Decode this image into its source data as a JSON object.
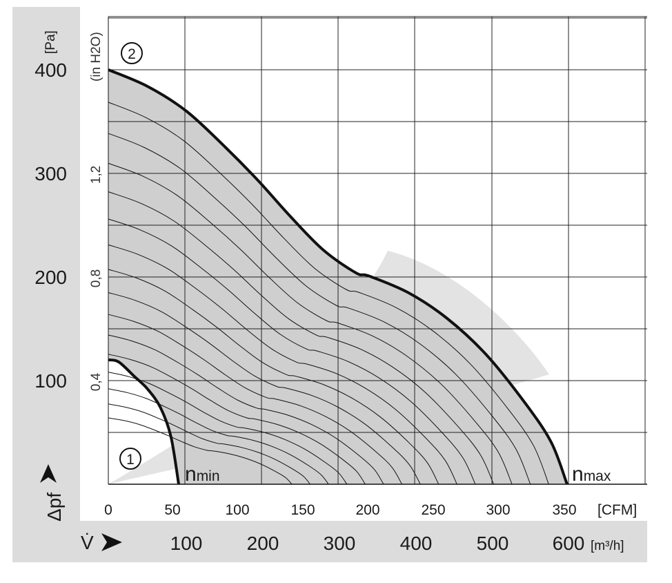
{
  "chart_data": {
    "type": "line",
    "title": "",
    "xlabel": "V̇",
    "ylabel": "Δpf",
    "x_unit_primary": "[m³/h]",
    "x_unit_secondary": "[CFM]",
    "y_unit_primary": "[Pa]",
    "y_unit_secondary": "(in H2O)",
    "x_ticks_m3h": [
      "100",
      "200",
      "300",
      "400",
      "500",
      "600"
    ],
    "x_ticks_cfm": [
      "0",
      "50",
      "100",
      "150",
      "200",
      "250",
      "300",
      "350"
    ],
    "y_ticks_pa": [
      "100",
      "200",
      "300",
      "400"
    ],
    "y_ticks_inh2o": [
      "0,4",
      "0,8",
      "1,2"
    ],
    "xlim_cfm": [
      0,
      380
    ],
    "ylim_pa": [
      0,
      400
    ],
    "grid": true,
    "series": [
      {
        "name": "nmax",
        "marker": "2",
        "x_cfm": [
          0,
          30,
          60,
          90,
          115,
          140,
          165,
          190,
          200,
          230,
          260,
          290,
          320,
          340,
          352
        ],
        "y_pa": [
          400,
          384,
          360,
          325,
          293,
          258,
          226,
          204,
          201,
          185,
          160,
          125,
          78,
          40,
          0
        ]
      },
      {
        "name": "nmin",
        "marker": "1",
        "x_cfm": [
          0,
          8,
          20,
          30,
          40,
          48,
          54
        ],
        "y_pa": [
          120,
          118,
          104,
          92,
          74,
          46,
          0
        ]
      }
    ],
    "curve_labels": [
      "n",
      "min",
      "n",
      "max"
    ],
    "markers": [
      "1",
      "2"
    ],
    "colors": {
      "operating_area": "#cfcfcf",
      "recommended_band": "#e3e3e3",
      "axis_band": "#dcdcdc",
      "curve": "#111111"
    }
  }
}
